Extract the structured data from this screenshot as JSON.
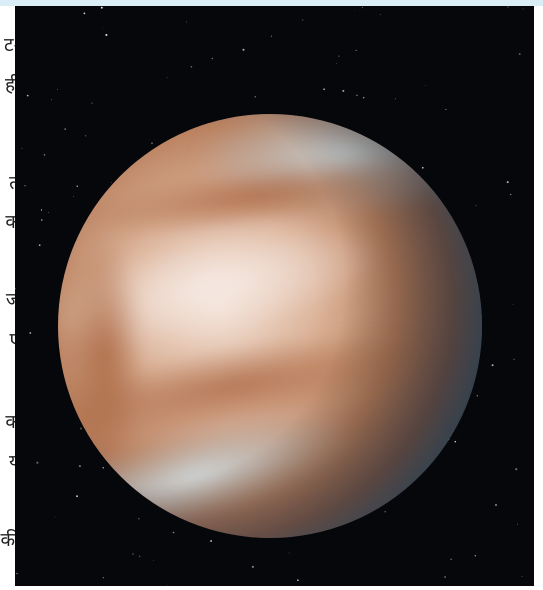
{
  "text_fragments": [
    "ट-",
    "हीं",
    "त",
    "क",
    "ज",
    "ए",
    "क",
    "य",
    "की",
    "।"
  ]
}
